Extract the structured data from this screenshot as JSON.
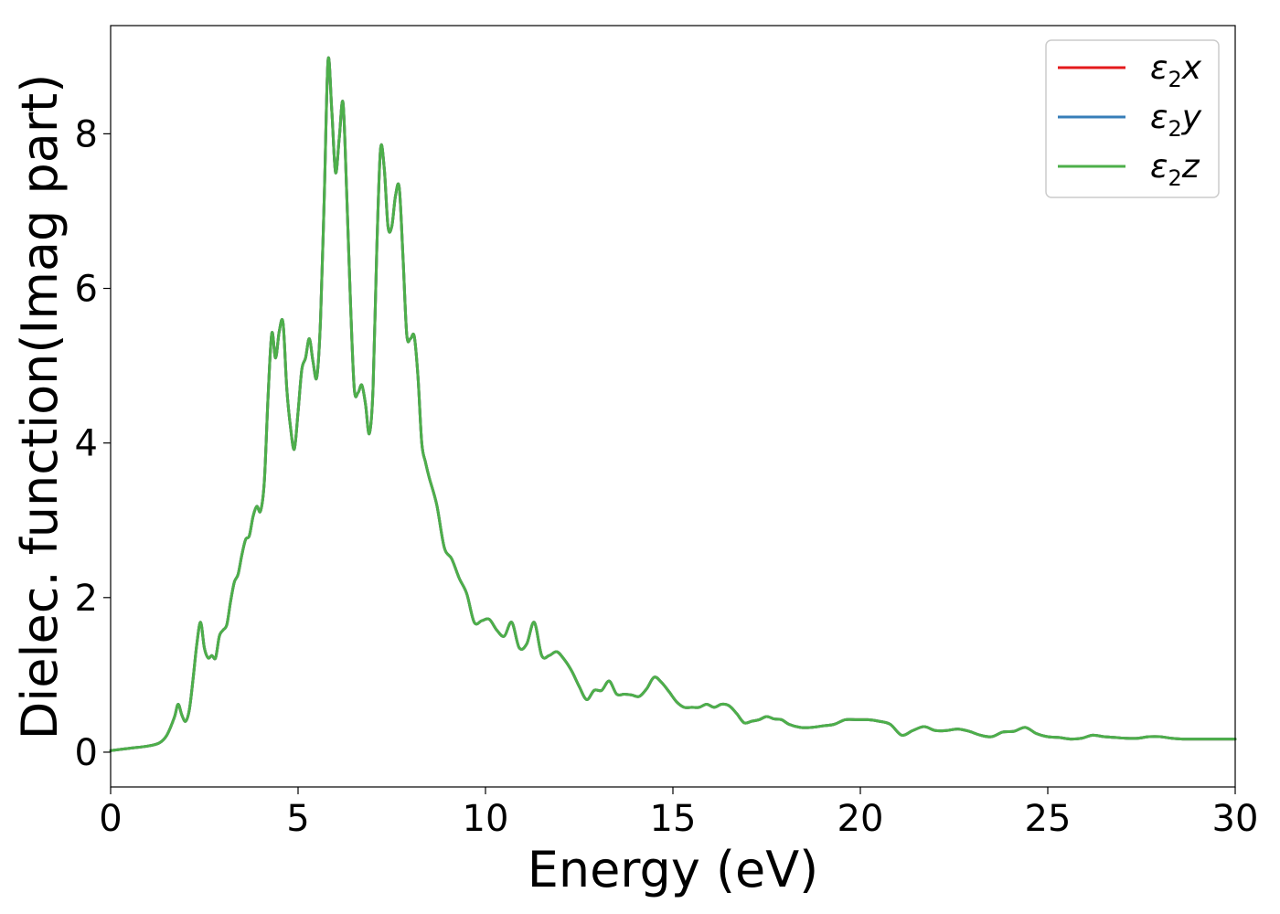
{
  "chart_data": {
    "type": "line",
    "xlabel": "Energy (eV)",
    "ylabel": "Dielec. function(Imag part)",
    "xlim": [
      0,
      30
    ],
    "ylim": [
      -0.45,
      9.4
    ],
    "xticks": [
      0,
      5,
      10,
      15,
      20,
      25,
      30
    ],
    "xtick_labels": [
      "0",
      "5",
      "10",
      "15",
      "20",
      "25",
      "30"
    ],
    "yticks": [
      0,
      2,
      4,
      6,
      8
    ],
    "ytick_labels": [
      "0",
      "2",
      "4",
      "6",
      "8"
    ],
    "grid": false,
    "legend_position": "top-right",
    "series": [
      {
        "name": "ε₂x",
        "legend_base": "ε",
        "legend_sub": "2",
        "legend_suffix": "x",
        "color": "#e41a1c",
        "values_ref": "shared_y"
      },
      {
        "name": "ε₂y",
        "legend_base": "ε",
        "legend_sub": "2",
        "legend_suffix": "y",
        "color": "#377eb8",
        "values_ref": "shared_y"
      },
      {
        "name": "ε₂z",
        "legend_base": "ε",
        "legend_sub": "2",
        "legend_suffix": "z",
        "color": "#4daf4a",
        "values_ref": "shared_y"
      }
    ],
    "x": [
      0,
      0.5,
      1.0,
      1.3,
      1.5,
      1.7,
      1.8,
      1.9,
      2.0,
      2.1,
      2.2,
      2.3,
      2.4,
      2.5,
      2.6,
      2.7,
      2.8,
      2.9,
      3.0,
      3.1,
      3.2,
      3.3,
      3.4,
      3.5,
      3.6,
      3.7,
      3.8,
      3.9,
      4.0,
      4.1,
      4.2,
      4.3,
      4.4,
      4.5,
      4.6,
      4.7,
      4.8,
      4.9,
      5.0,
      5.1,
      5.2,
      5.3,
      5.4,
      5.5,
      5.6,
      5.7,
      5.8,
      5.9,
      6.0,
      6.1,
      6.2,
      6.3,
      6.4,
      6.5,
      6.6,
      6.7,
      6.8,
      6.9,
      7.0,
      7.1,
      7.2,
      7.3,
      7.4,
      7.5,
      7.6,
      7.7,
      7.8,
      7.9,
      8.0,
      8.1,
      8.2,
      8.3,
      8.4,
      8.5,
      8.7,
      8.9,
      9.1,
      9.3,
      9.5,
      9.7,
      9.9,
      10.1,
      10.3,
      10.5,
      10.7,
      10.9,
      11.1,
      11.3,
      11.5,
      11.7,
      11.9,
      12.1,
      12.3,
      12.5,
      12.7,
      12.9,
      13.1,
      13.3,
      13.5,
      13.7,
      13.9,
      14.1,
      14.3,
      14.5,
      14.7,
      14.9,
      15.1,
      15.3,
      15.5,
      15.7,
      15.9,
      16.1,
      16.3,
      16.5,
      16.7,
      16.9,
      17.1,
      17.3,
      17.5,
      17.7,
      17.9,
      18.1,
      18.4,
      18.7,
      19.0,
      19.3,
      19.6,
      19.9,
      20.2,
      20.5,
      20.8,
      21.1,
      21.4,
      21.7,
      22.0,
      22.3,
      22.6,
      22.9,
      23.2,
      23.5,
      23.8,
      24.1,
      24.4,
      24.7,
      25.0,
      25.3,
      25.6,
      25.9,
      26.2,
      26.5,
      26.8,
      27.1,
      27.4,
      27.7,
      28.0,
      28.3,
      28.6,
      28.9,
      29.2,
      29.5,
      29.8,
      30.0
    ],
    "shared_y": [
      0.02,
      0.05,
      0.08,
      0.12,
      0.22,
      0.45,
      0.62,
      0.48,
      0.4,
      0.55,
      0.95,
      1.4,
      1.68,
      1.35,
      1.22,
      1.25,
      1.22,
      1.5,
      1.58,
      1.65,
      1.95,
      2.2,
      2.3,
      2.55,
      2.75,
      2.8,
      3.05,
      3.18,
      3.12,
      3.5,
      4.6,
      5.42,
      5.1,
      5.45,
      5.55,
      4.7,
      4.2,
      3.92,
      4.4,
      4.95,
      5.1,
      5.35,
      5.05,
      4.85,
      5.6,
      7.2,
      8.95,
      8.3,
      7.5,
      7.95,
      8.4,
      7.2,
      5.8,
      4.7,
      4.65,
      4.75,
      4.5,
      4.12,
      4.7,
      6.5,
      7.8,
      7.55,
      6.8,
      6.8,
      7.2,
      7.3,
      6.4,
      5.4,
      5.35,
      5.38,
      4.85,
      4.0,
      3.75,
      3.55,
      3.2,
      2.65,
      2.5,
      2.25,
      2.05,
      1.68,
      1.7,
      1.72,
      1.58,
      1.5,
      1.68,
      1.35,
      1.4,
      1.68,
      1.25,
      1.25,
      1.3,
      1.2,
      1.05,
      0.85,
      0.68,
      0.8,
      0.8,
      0.92,
      0.75,
      0.75,
      0.74,
      0.72,
      0.82,
      0.97,
      0.9,
      0.78,
      0.65,
      0.58,
      0.58,
      0.58,
      0.62,
      0.58,
      0.62,
      0.6,
      0.5,
      0.38,
      0.4,
      0.42,
      0.46,
      0.43,
      0.42,
      0.36,
      0.32,
      0.32,
      0.34,
      0.36,
      0.42,
      0.42,
      0.42,
      0.4,
      0.36,
      0.22,
      0.28,
      0.33,
      0.28,
      0.28,
      0.3,
      0.27,
      0.22,
      0.2,
      0.26,
      0.27,
      0.32,
      0.24,
      0.2,
      0.19,
      0.17,
      0.18,
      0.22,
      0.2,
      0.19,
      0.18,
      0.18,
      0.2,
      0.2,
      0.18,
      0.17,
      0.17,
      0.17,
      0.17,
      0.17,
      0.17
    ]
  }
}
